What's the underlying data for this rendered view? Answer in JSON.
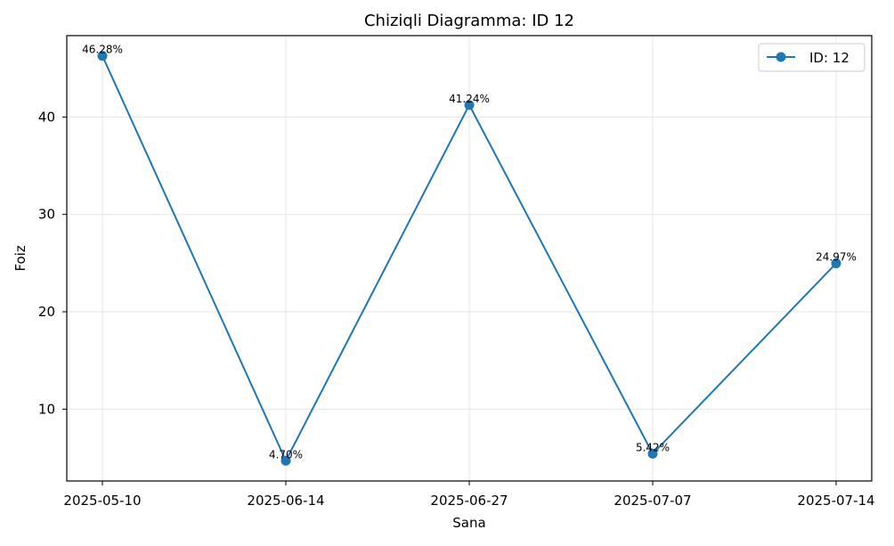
{
  "chart_data": {
    "type": "line",
    "title": "Chiziqli Diagramma: ID 12",
    "xlabel": "Sana",
    "ylabel": "Foiz",
    "categories": [
      "2025-05-10",
      "2025-06-14",
      "2025-06-27",
      "2025-07-07",
      "2025-07-14"
    ],
    "series": [
      {
        "name": "ID: 12",
        "values": [
          46.28,
          4.7,
          41.24,
          5.42,
          24.97
        ],
        "labels": [
          "46.28%",
          "4.70%",
          "41.24%",
          "5.42%",
          "24.97%"
        ],
        "color": "#1f77b4"
      }
    ],
    "ylim": [
      2.62,
      48.36
    ],
    "yticks": [
      10,
      20,
      30,
      40
    ],
    "grid": true,
    "legend_position": "top-right"
  }
}
